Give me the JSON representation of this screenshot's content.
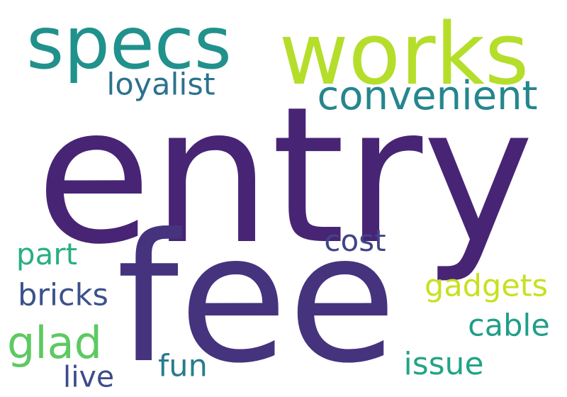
{
  "words": [
    {
      "id": "entry",
      "text": "entry",
      "color": "#482475"
    },
    {
      "id": "fee",
      "text": "fee",
      "color": "#46337e"
    },
    {
      "id": "specs",
      "text": "specs",
      "color": "#21918c"
    },
    {
      "id": "works",
      "text": "works",
      "color": "#b5de2b"
    },
    {
      "id": "convenient",
      "text": "convenient",
      "color": "#24868e"
    },
    {
      "id": "loyalist",
      "text": "loyalist",
      "color": "#2c728e"
    },
    {
      "id": "cost",
      "text": "cost",
      "color": "#414487"
    },
    {
      "id": "part",
      "text": "part",
      "color": "#29af7f"
    },
    {
      "id": "gadgets",
      "text": "gadgets",
      "color": "#c8e020"
    },
    {
      "id": "bricks",
      "text": "bricks",
      "color": "#3b528b"
    },
    {
      "id": "cable",
      "text": "cable",
      "color": "#1f9e89"
    },
    {
      "id": "glad",
      "text": "glad",
      "color": "#5ec962"
    },
    {
      "id": "fun",
      "text": "fun",
      "color": "#287c8e"
    },
    {
      "id": "issue",
      "text": "issue",
      "color": "#20a486"
    },
    {
      "id": "live",
      "text": "live",
      "color": "#3e4c8a"
    }
  ]
}
